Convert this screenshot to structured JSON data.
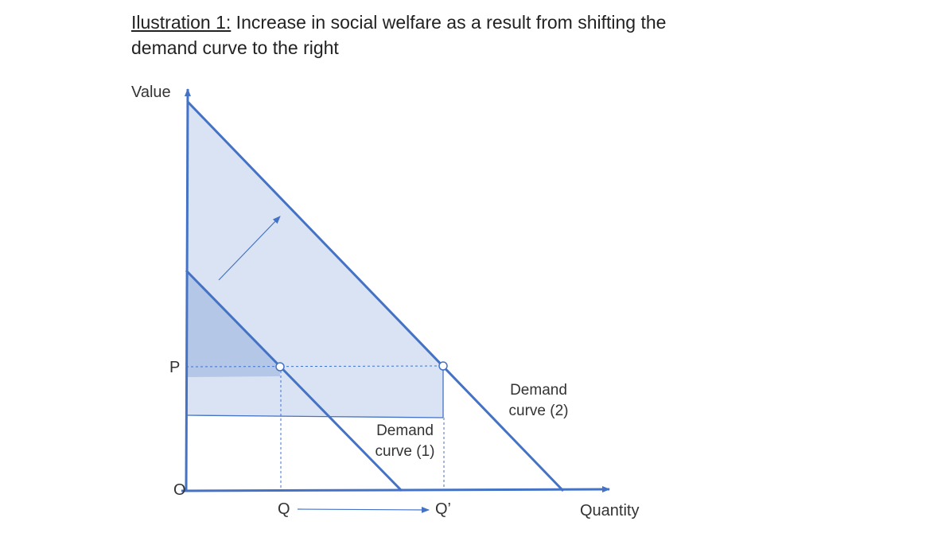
{
  "title": {
    "label": "Ilustration 1:",
    "text": " Increase in social welfare as a result from shifting the",
    "text_line2": "demand curve to the right"
  },
  "axes": {
    "y_label": "Value",
    "x_label": "Quantity",
    "origin_label": "O",
    "price_label": "P",
    "q_label": "Q",
    "q2_label": "Q’"
  },
  "curves": {
    "demand1_line1": "Demand",
    "demand1_line2": "curve (1)",
    "demand2_line1": "Demand",
    "demand2_line2": "curve (2)"
  },
  "colors": {
    "line": "#4472C4",
    "area_light": "#DAE3F3",
    "area_dark": "#B4C7E7"
  }
}
